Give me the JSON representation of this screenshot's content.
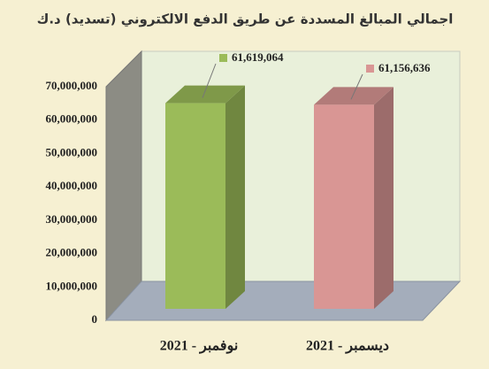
{
  "chart_data": {
    "type": "bar3d",
    "title": "اجمالي المبالغ المسددة عن طريق الدفع الالكتروني (تسديد) د.ك",
    "categories": [
      "نوفمبر - 2021",
      "ديسمبر - 2021"
    ],
    "values": [
      61619064,
      61156636
    ],
    "value_labels": [
      "61,619,064",
      "61,156,636"
    ],
    "colors": [
      "#9bbb59",
      "#d99694"
    ],
    "ylim": [
      0,
      70000000
    ],
    "yticks": [
      0,
      {
        "value": 10000000,
        "label": "10,000,000"
      },
      {
        "value": 20000000,
        "label": "20,000,000"
      },
      {
        "value": 30000000,
        "label": "30,000,000"
      },
      {
        "value": 40000000,
        "label": "40,000,000"
      },
      {
        "value": 50000000,
        "label": "50,000,000"
      },
      {
        "value": 60000000,
        "label": "60,000,000"
      },
      {
        "value": 70000000,
        "label": "70,000,000"
      }
    ],
    "grid": false
  }
}
